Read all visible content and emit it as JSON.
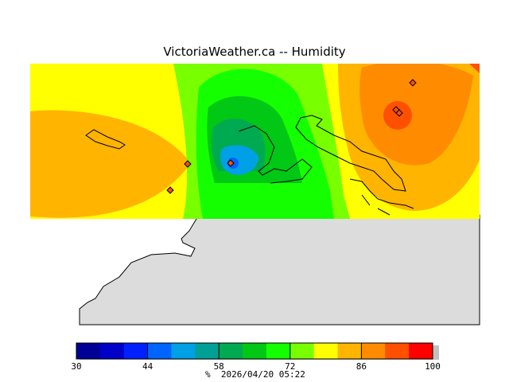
{
  "header": {
    "title": "VictoriaWeather.ca -- Humidity"
  },
  "colorbar": {
    "min": 30,
    "max": 100,
    "tick_labels": [
      "30",
      "44",
      "58",
      "72",
      "86",
      "100"
    ],
    "unit": "%",
    "timestamp": "2026/04/20 05:22",
    "colors": [
      "#000096",
      "#0000c8",
      "#0020ff",
      "#0064ff",
      "#00a0e6",
      "#00a096",
      "#00aa50",
      "#00c814",
      "#14ff00",
      "#78ff00",
      "#ffff00",
      "#ffb400",
      "#ff8c00",
      "#ff5000",
      "#ff0000"
    ]
  },
  "legend_colors": {
    "land": "#dcdcdc",
    "no_data": "#ffffff"
  }
}
